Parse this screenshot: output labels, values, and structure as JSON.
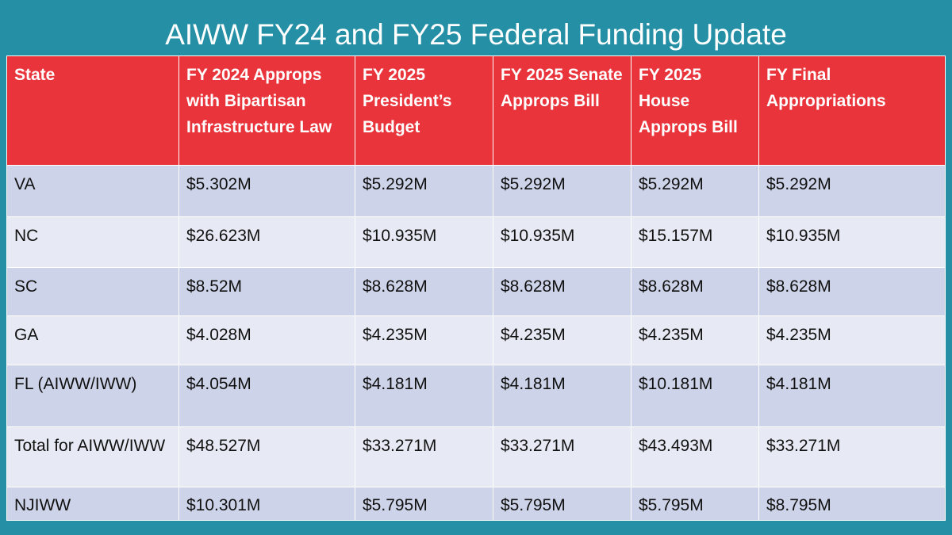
{
  "slide": {
    "title": "AIWW FY24 and FY25 Federal Funding Update",
    "background_color": "#2590a5",
    "header_color": "#e9343b"
  },
  "table": {
    "headers": [
      "State",
      "FY 2024 Approps with Bipartisan Infrastructure Law",
      "FY 2025 President’s Budget",
      "FY 2025 Senate Approps Bill",
      "FY 2025 House Approps Bill",
      "FY Final Appropriations"
    ],
    "rows": [
      [
        "VA",
        "$5.302M",
        "$5.292M",
        "$5.292M",
        "$5.292M",
        "$5.292M"
      ],
      [
        "NC",
        "$26.623M",
        "$10.935M",
        "$10.935M",
        "$15.157M",
        "$10.935M"
      ],
      [
        "SC",
        "$8.52M",
        "$8.628M",
        "$8.628M",
        "$8.628M",
        "$8.628M"
      ],
      [
        "GA",
        "$4.028M",
        "$4.235M",
        "$4.235M",
        "$4.235M",
        "$4.235M"
      ],
      [
        "FL (AIWW/IWW)",
        "$4.054M",
        "$4.181M",
        "$4.181M",
        "$10.181M",
        "$4.181M"
      ],
      [
        "Total for AIWW/IWW",
        "$48.527M",
        "$33.271M",
        "$33.271M",
        "$43.493M",
        "$33.271M"
      ],
      [
        "NJIWW",
        "$10.301M",
        "$5.795M",
        "$5.795M",
        "$5.795M",
        "$8.795M"
      ]
    ]
  }
}
